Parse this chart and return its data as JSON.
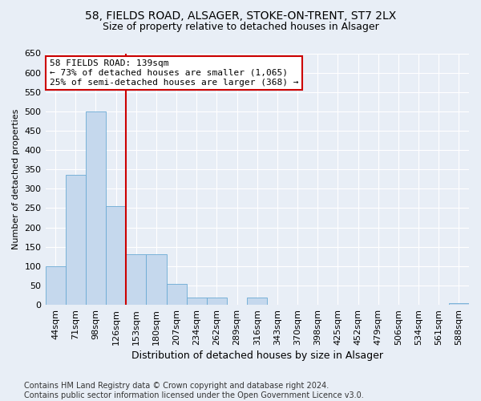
{
  "title1": "58, FIELDS ROAD, ALSAGER, STOKE-ON-TRENT, ST7 2LX",
  "title2": "Size of property relative to detached houses in Alsager",
  "xlabel": "Distribution of detached houses by size in Alsager",
  "ylabel": "Number of detached properties",
  "categories": [
    "44sqm",
    "71sqm",
    "98sqm",
    "126sqm",
    "153sqm",
    "180sqm",
    "207sqm",
    "234sqm",
    "262sqm",
    "289sqm",
    "316sqm",
    "343sqm",
    "370sqm",
    "398sqm",
    "425sqm",
    "452sqm",
    "479sqm",
    "506sqm",
    "534sqm",
    "561sqm",
    "588sqm"
  ],
  "values": [
    100,
    335,
    500,
    255,
    130,
    130,
    55,
    18,
    18,
    0,
    18,
    0,
    0,
    0,
    0,
    0,
    0,
    0,
    0,
    0,
    5
  ],
  "bar_color": "#c5d8ed",
  "bar_edge_color": "#6aaad4",
  "vline_color": "#cc0000",
  "annotation_text": "58 FIELDS ROAD: 139sqm\n← 73% of detached houses are smaller (1,065)\n25% of semi-detached houses are larger (368) →",
  "annotation_box_color": "#cc0000",
  "bg_color": "#e8eef6",
  "plot_bg_color": "#e8eef6",
  "ylim": [
    0,
    650
  ],
  "yticks": [
    0,
    50,
    100,
    150,
    200,
    250,
    300,
    350,
    400,
    450,
    500,
    550,
    600,
    650
  ],
  "footnote": "Contains HM Land Registry data © Crown copyright and database right 2024.\nContains public sector information licensed under the Open Government Licence v3.0.",
  "title1_fontsize": 10,
  "title2_fontsize": 9,
  "xlabel_fontsize": 9,
  "ylabel_fontsize": 8,
  "tick_fontsize": 8,
  "annot_fontsize": 8,
  "footnote_fontsize": 7
}
